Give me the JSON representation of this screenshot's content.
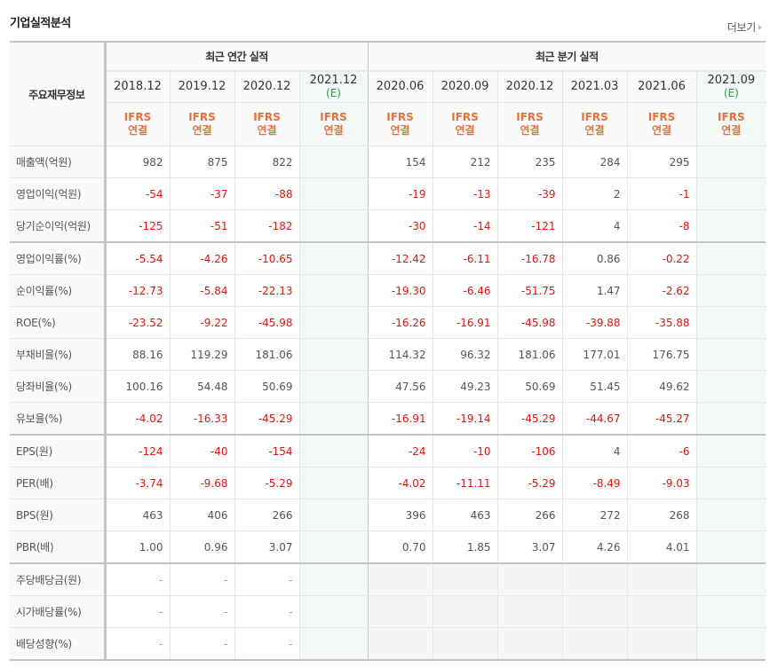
{
  "header": {
    "title": "기업실적분석",
    "more_label": "더보기",
    "more_icon": "triangle-right-icon"
  },
  "table": {
    "label_header": "주요재무정보",
    "groups": {
      "annual": "최근 연간 실적",
      "quarterly": "최근 분기 실적"
    },
    "annual_periods": [
      {
        "date": "2018.12",
        "estimate": ""
      },
      {
        "date": "2019.12",
        "estimate": ""
      },
      {
        "date": "2020.12",
        "estimate": ""
      },
      {
        "date": "2021.12",
        "estimate": "(E)"
      }
    ],
    "quarterly_periods": [
      {
        "date": "2020.06",
        "estimate": ""
      },
      {
        "date": "2020.09",
        "estimate": ""
      },
      {
        "date": "2020.12",
        "estimate": ""
      },
      {
        "date": "2021.03",
        "estimate": ""
      },
      {
        "date": "2021.06",
        "estimate": ""
      },
      {
        "date": "2021.09",
        "estimate": "(E)"
      }
    ],
    "basis": {
      "line1": "IFRS",
      "line2": "연결"
    },
    "rows": [
      {
        "label": "매출액(억원)",
        "annual": [
          "982",
          "875",
          "822",
          ""
        ],
        "quarterly": [
          "154",
          "212",
          "235",
          "284",
          "295",
          ""
        ]
      },
      {
        "label": "영업이익(억원)",
        "annual": [
          "-54",
          "-37",
          "-88",
          ""
        ],
        "quarterly": [
          "-19",
          "-13",
          "-39",
          "2",
          "-1",
          ""
        ]
      },
      {
        "label": "당기순이익(억원)",
        "annual": [
          "-125",
          "-51",
          "-182",
          ""
        ],
        "quarterly": [
          "-30",
          "-14",
          "-121",
          "4",
          "-8",
          ""
        ]
      },
      {
        "label": "영업이익률(%)",
        "annual": [
          "-5.54",
          "-4.26",
          "-10.65",
          ""
        ],
        "quarterly": [
          "-12.42",
          "-6.11",
          "-16.78",
          "0.86",
          "-0.22",
          ""
        ]
      },
      {
        "label": "순이익률(%)",
        "annual": [
          "-12.73",
          "-5.84",
          "-22.13",
          ""
        ],
        "quarterly": [
          "-19.30",
          "-6.46",
          "-51.75",
          "1.47",
          "-2.62",
          ""
        ]
      },
      {
        "label": "ROE(%)",
        "annual": [
          "-23.52",
          "-9.22",
          "-45.98",
          ""
        ],
        "quarterly": [
          "-16.26",
          "-16.91",
          "-45.98",
          "-39.88",
          "-35.88",
          ""
        ]
      },
      {
        "label": "부채비율(%)",
        "annual": [
          "88.16",
          "119.29",
          "181.06",
          ""
        ],
        "quarterly": [
          "114.32",
          "96.32",
          "181.06",
          "177.01",
          "176.75",
          ""
        ]
      },
      {
        "label": "당좌비율(%)",
        "annual": [
          "100.16",
          "54.48",
          "50.69",
          ""
        ],
        "quarterly": [
          "47.56",
          "49.23",
          "50.69",
          "51.45",
          "49.62",
          ""
        ]
      },
      {
        "label": "유보율(%)",
        "annual": [
          "-4.02",
          "-16.33",
          "-45.29",
          ""
        ],
        "quarterly": [
          "-16.91",
          "-19.14",
          "-45.29",
          "-44.67",
          "-45.27",
          ""
        ]
      },
      {
        "label": "EPS(원)",
        "annual": [
          "-124",
          "-40",
          "-154",
          ""
        ],
        "quarterly": [
          "-24",
          "-10",
          "-106",
          "4",
          "-6",
          ""
        ]
      },
      {
        "label": "PER(배)",
        "annual": [
          "-3.74",
          "-9.68",
          "-5.29",
          ""
        ],
        "quarterly": [
          "-4.02",
          "-11.11",
          "-5.29",
          "-8.49",
          "-9.03",
          ""
        ]
      },
      {
        "label": "BPS(원)",
        "annual": [
          "463",
          "406",
          "266",
          ""
        ],
        "quarterly": [
          "396",
          "463",
          "266",
          "272",
          "268",
          ""
        ]
      },
      {
        "label": "PBR(배)",
        "annual": [
          "1.00",
          "0.96",
          "3.07",
          ""
        ],
        "quarterly": [
          "0.70",
          "1.85",
          "3.07",
          "4.26",
          "4.01",
          ""
        ]
      },
      {
        "label": "주당배당금(원)",
        "annual": [
          "-",
          "-",
          "-",
          ""
        ],
        "quarterly": [
          "",
          "",
          "",
          "",
          "",
          ""
        ]
      },
      {
        "label": "시가배당률(%)",
        "annual": [
          "-",
          "-",
          "-",
          ""
        ],
        "quarterly": [
          "",
          "",
          "",
          "",
          "",
          ""
        ]
      },
      {
        "label": "배당성향(%)",
        "annual": [
          "-",
          "-",
          "-",
          ""
        ],
        "quarterly": [
          "",
          "",
          "",
          "",
          "",
          ""
        ]
      }
    ],
    "section_starts": [
      3,
      9,
      13
    ]
  },
  "colors": {
    "negative": "#e0140d",
    "basis_orange": "#e8703a",
    "estimate_green": "#2f9b55",
    "estimate_bg": "#f2f8f3"
  }
}
